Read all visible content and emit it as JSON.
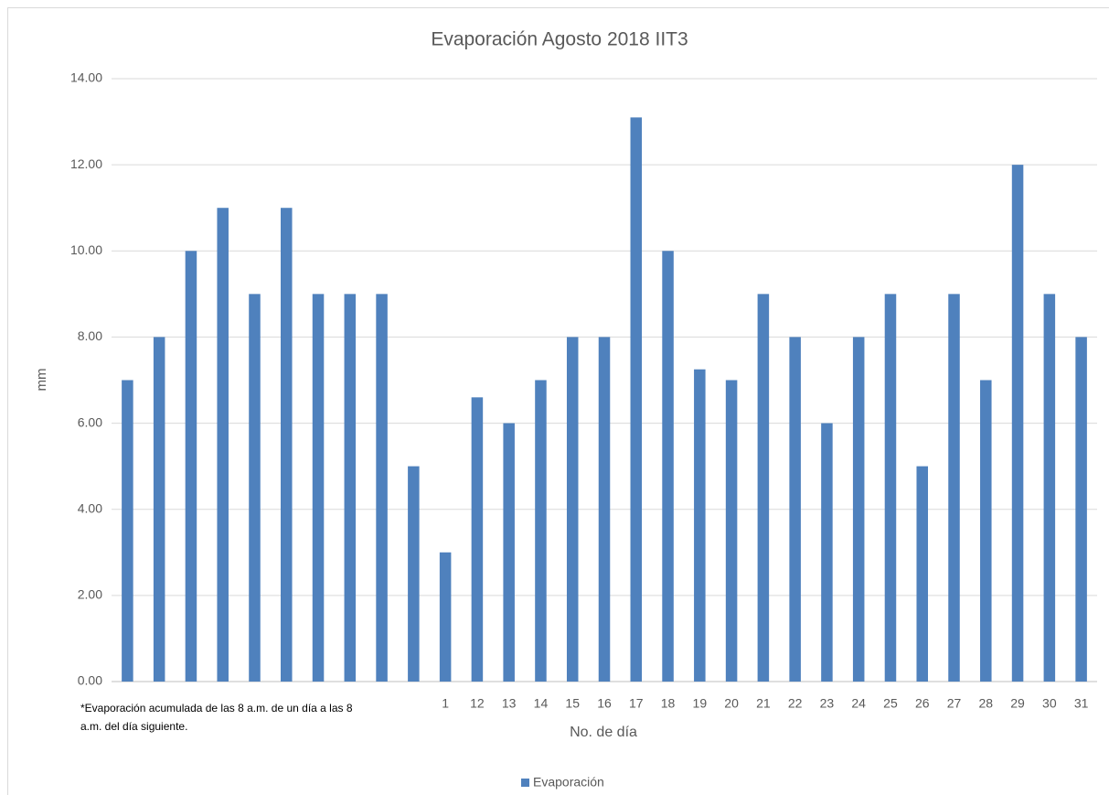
{
  "chart_data": {
    "type": "bar",
    "title": "Evaporación Agosto 2018 IIT3",
    "x_label": "No. de día",
    "y_label": "mm",
    "annotation": [
      "*Evaporación acumulada de las 8 a.m. de un día a las 8",
      "a.m. del día siguiente."
    ],
    "categories": [
      null,
      null,
      null,
      null,
      null,
      null,
      null,
      null,
      null,
      null,
      "1",
      "12",
      "13",
      "14",
      "15",
      "16",
      "17",
      "18",
      "19",
      "20",
      "21",
      "22",
      "23",
      "24",
      "25",
      "26",
      "27",
      "28",
      "29",
      "30",
      "31"
    ],
    "series": [
      {
        "name": "Evaporación",
        "color": "#4f81bd",
        "values": [
          7,
          8,
          10,
          11,
          9,
          11,
          9,
          9,
          9,
          5,
          3,
          6.6,
          6,
          7,
          8,
          8,
          13.1,
          10,
          7.25,
          7,
          9,
          8,
          6,
          8,
          9,
          5,
          9,
          7,
          12,
          9,
          8
        ]
      }
    ],
    "ylim": [
      0,
      14
    ],
    "yticks": [
      {
        "value": 0,
        "label": "0.00"
      },
      {
        "value": 2,
        "label": "2.00"
      },
      {
        "value": 4,
        "label": "4.00"
      },
      {
        "value": 6,
        "label": "6.00"
      },
      {
        "value": 8,
        "label": "8.00"
      },
      {
        "value": 10,
        "label": "10.00"
      },
      {
        "value": 12,
        "label": "12.00"
      },
      {
        "value": 14,
        "label": "14.00"
      }
    ],
    "grid": true,
    "legend": "bottom"
  }
}
